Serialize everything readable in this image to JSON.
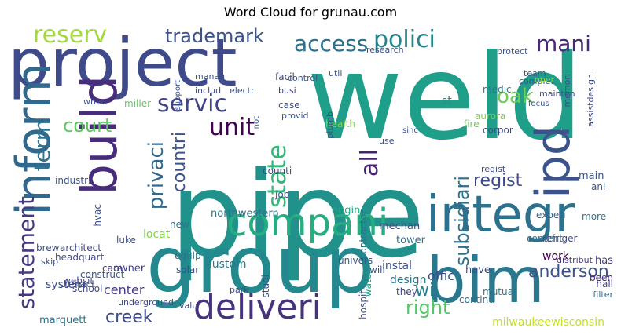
{
  "chart_data": {
    "type": "wordcloud",
    "title": "Word Cloud for grunau.com",
    "words": [
      {
        "text": "pipe",
        "c": "#21918c"
      },
      {
        "text": "weld",
        "c": "#1f9e89"
      },
      {
        "text": "project",
        "c": "#3e4a89"
      },
      {
        "text": "group",
        "c": "#23898e"
      },
      {
        "text": "inform",
        "c": "#31688e"
      },
      {
        "text": "build",
        "c": "#472d7b"
      },
      {
        "text": "bim",
        "c": "#2a788e"
      },
      {
        "text": "integr",
        "c": "#2c718e"
      },
      {
        "text": "compani",
        "c": "#26ad81"
      },
      {
        "text": "deliveri",
        "c": "#46327e"
      },
      {
        "text": "ipd",
        "c": "#3b528b"
      },
      {
        "text": "polici",
        "c": "#25858e"
      },
      {
        "text": "access",
        "c": "#2d708e"
      },
      {
        "text": "mani",
        "c": "#482878"
      },
      {
        "text": "servic",
        "c": "#414487"
      },
      {
        "text": "trademark",
        "c": "#3b528b"
      },
      {
        "text": "unit",
        "c": "#440154"
      },
      {
        "text": "state",
        "c": "#35b779"
      },
      {
        "text": "reserv",
        "c": "#a2da37"
      },
      {
        "text": "term",
        "c": "#2c728e"
      },
      {
        "text": "court",
        "c": "#5ec962"
      },
      {
        "text": "statement",
        "c": "#443a83"
      },
      {
        "text": "privaci",
        "c": "#31688e"
      },
      {
        "text": "countri",
        "c": "#3b528b"
      },
      {
        "text": "all",
        "c": "#482173"
      },
      {
        "text": "regist",
        "c": "#3e4a89"
      },
      {
        "text": "subsidiari",
        "c": "#2c728e"
      },
      {
        "text": "oak",
        "c": "#6ece58"
      },
      {
        "text": "right",
        "c": "#54c568"
      },
      {
        "text": "anderson",
        "c": "#3b528b"
      },
      {
        "text": "creek",
        "c": "#3e4a89"
      },
      {
        "text": "wi",
        "c": "#26828e"
      },
      {
        "text": "offic",
        "c": "#3b528b"
      },
      {
        "text": "st",
        "c": "#21918c"
      },
      {
        "text": "center",
        "c": "#443983"
      },
      {
        "text": "system",
        "c": "#3e4a89"
      },
      {
        "text": "locat",
        "c": "#84d44b"
      },
      {
        "text": "milwaukeewisconsin",
        "c": "#c2df23"
      },
      {
        "text": "medic",
        "c": "#2a788e"
      },
      {
        "text": "mechan",
        "c": "#414487"
      },
      {
        "text": "regist",
        "c": "#3e4a89"
      },
      {
        "text": "ani",
        "c": "#39568c"
      },
      {
        "text": "main",
        "c": "#3b528b"
      },
      {
        "text": "work",
        "c": "#440154"
      },
      {
        "text": "content",
        "c": "#2c718e"
      },
      {
        "text": "distribut",
        "c": "#453781"
      },
      {
        "text": "more",
        "c": "#2a788e"
      },
      {
        "text": "has",
        "c": "#453781"
      },
      {
        "text": "hall",
        "c": "#414487"
      },
      {
        "text": "been",
        "c": "#482878"
      },
      {
        "text": "filter",
        "c": "#31688e"
      },
      {
        "text": "instal",
        "c": "#3b528b"
      },
      {
        "text": "design",
        "c": "#2a788e"
      },
      {
        "text": "have",
        "c": "#3e4a89"
      },
      {
        "text": "continu",
        "c": "#2c718e"
      },
      {
        "text": "they",
        "c": "#414487"
      },
      {
        "text": "will",
        "c": "#3b528b"
      },
      {
        "text": "mutual",
        "c": "#2a788e"
      },
      {
        "text": "experi",
        "c": "#31688e"
      },
      {
        "text": "refriger",
        "c": "#3e4a89"
      },
      {
        "text": "tower",
        "c": "#2c728e"
      },
      {
        "text": "engin",
        "c": "#22a884"
      },
      {
        "text": "job",
        "c": "#3b528b"
      },
      {
        "text": "counti",
        "c": "#414487"
      },
      {
        "text": "contractor",
        "c": "#2c728e"
      },
      {
        "text": "univers",
        "c": "#3b528b"
      },
      {
        "text": "northwestern",
        "c": "#2c728e"
      },
      {
        "text": "custom",
        "c": "#2a788e"
      },
      {
        "text": "park",
        "c": "#3e4a89"
      },
      {
        "text": "studi",
        "c": "#3b528b"
      },
      {
        "text": "hospit",
        "c": "#3e4a89"
      },
      {
        "text": "water",
        "c": "#1fa188"
      },
      {
        "text": "luke",
        "c": "#3b528b"
      },
      {
        "text": "new",
        "c": "#2a788e"
      },
      {
        "text": "equip",
        "c": "#2c718e"
      },
      {
        "text": "solar",
        "c": "#3e4a89"
      },
      {
        "text": "care",
        "c": "#453781"
      },
      {
        "text": "owner",
        "c": "#414487"
      },
      {
        "text": "construct",
        "c": "#3b528b"
      },
      {
        "text": "architect",
        "c": "#3e4a89"
      },
      {
        "text": "headquart",
        "c": "#3e4a89"
      },
      {
        "text": "brew",
        "c": "#3b528b"
      },
      {
        "text": "contact",
        "c": "#3b528b"
      },
      {
        "text": "websit",
        "c": "#414487"
      },
      {
        "text": "school",
        "c": "#3e4a89"
      },
      {
        "text": "skip",
        "c": "#3b528b"
      },
      {
        "text": "underground",
        "c": "#3e4a89"
      },
      {
        "text": "valu",
        "c": "#3b528b"
      },
      {
        "text": "marquett",
        "c": "#2c728e"
      },
      {
        "text": "industri",
        "c": "#3b528b"
      },
      {
        "text": "hvac",
        "c": "#3b528b"
      },
      {
        "text": "case",
        "c": "#3e4a89"
      },
      {
        "text": "busi",
        "c": "#414487"
      },
      {
        "text": "provid",
        "c": "#3b528b"
      },
      {
        "text": "facil",
        "c": "#3e4a89"
      },
      {
        "text": "control",
        "c": "#3b528b"
      },
      {
        "text": "includ",
        "c": "#3e4a89"
      },
      {
        "text": "electr",
        "c": "#3b528b"
      },
      {
        "text": "manag",
        "c": "#3b528b"
      },
      {
        "text": "miller",
        "c": "#5ec962"
      },
      {
        "text": "when",
        "c": "#3b528b"
      },
      {
        "text": "health",
        "c": "#84d44b"
      },
      {
        "text": "fire",
        "c": "#6ece58"
      },
      {
        "text": "aurora",
        "c": "#7ad151"
      },
      {
        "text": "corpor",
        "c": "#3e4a89"
      },
      {
        "text": "plumb",
        "c": "#3b528b"
      },
      {
        "text": "util",
        "c": "#3b528b"
      },
      {
        "text": "research",
        "c": "#3b528b"
      },
      {
        "text": "complet",
        "c": "#3b528b"
      },
      {
        "text": "protect",
        "c": "#3b528b"
      },
      {
        "text": "team",
        "c": "#3b528b"
      },
      {
        "text": "oper",
        "c": "#a2da37"
      },
      {
        "text": "memori",
        "c": "#3e4a89"
      },
      {
        "text": "mainten",
        "c": "#3b528b"
      },
      {
        "text": "assistdesign",
        "c": "#3e4a89"
      },
      {
        "text": "support",
        "c": "#3b528b"
      },
      {
        "text": "not",
        "c": "#3b528b"
      },
      {
        "text": "use",
        "c": "#3b528b"
      },
      {
        "text": "sinc",
        "c": "#3b528b"
      },
      {
        "text": "focus",
        "c": "#3b528b"
      }
    ]
  }
}
